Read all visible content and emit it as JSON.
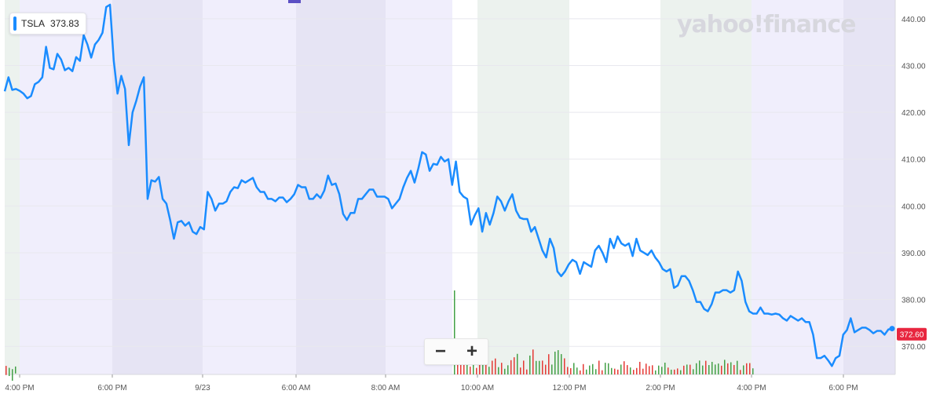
{
  "ticker": {
    "symbol": "TSLA",
    "price": "373.83"
  },
  "watermark": "yahoo!finance",
  "zoom": {
    "minus": "−",
    "plus": "+"
  },
  "colors": {
    "line": "#1a8cff",
    "current_price_bg": "#e8263f",
    "session_afterhours": "#f0eefc",
    "session_overnight": "#e6e4f4",
    "session_premarket": "#ecf2ee",
    "vol_up": "#43a047",
    "vol_down": "#e53935"
  },
  "chart_data": {
    "type": "line",
    "title": "",
    "xlabel": "",
    "ylabel": "",
    "ylim": [
      364,
      443
    ],
    "x_tick_labels": [
      "4:00 PM",
      "6:00 PM",
      "9/23",
      "6:00 AM",
      "8:00 AM",
      "10:00 AM",
      "12:00 PM",
      "2:00 PM",
      "4:00 PM",
      "6:00 PM"
    ],
    "y_tick_labels": [
      "440.00",
      "430.00",
      "420.00",
      "410.00",
      "400.00",
      "390.00",
      "380.00",
      "370.00"
    ],
    "current_price_label": "372.60",
    "current_price": 372.6,
    "series": [
      {
        "values": [
          424.5,
          427.5,
          424.8,
          425,
          424.6,
          424,
          423,
          423.5,
          426,
          426.5,
          427.5,
          434,
          429.5,
          429.2,
          432.5,
          431.3,
          429,
          429.5,
          428.8,
          431.8,
          431,
          436.5,
          434.5,
          431.7,
          434.5,
          435.5,
          437,
          442.5,
          443,
          431,
          424,
          427.8,
          425,
          413,
          420,
          422.5,
          425.5,
          427.5,
          401.5,
          405.5,
          405.2,
          406.2,
          401.5,
          400.5,
          397,
          393,
          396.5,
          396.8,
          395.8,
          396.5,
          394.5,
          394,
          395.5,
          395,
          403,
          401.5,
          399,
          400.5,
          400.5,
          401,
          403,
          404,
          403.8,
          405.5,
          405,
          405.5,
          406,
          404,
          403,
          403,
          401.5,
          401.5,
          401,
          401.8,
          401.8,
          400.8,
          401.5,
          402.5,
          404.5,
          404,
          404,
          401.5,
          401.5,
          402.5,
          401.7,
          403.3,
          406.5,
          404.5,
          404.8,
          402.5,
          398.3,
          397,
          398.5,
          398.5,
          401.5,
          401.5,
          402.5,
          403.5,
          403.5,
          402,
          402,
          402,
          401.5,
          399.5,
          400.5,
          401.5,
          404,
          406,
          407.5,
          405,
          408,
          411.5,
          411,
          407.5,
          409,
          408.8,
          410.5,
          409.5,
          410,
          404.5,
          409.5,
          403,
          402,
          401.5,
          396,
          398,
          399.5,
          394.5,
          398.5,
          396,
          398.5,
          402,
          401,
          399,
          401,
          402.5,
          399,
          397.5,
          397.2,
          397.2,
          394.5,
          395.5,
          393,
          390.5,
          389,
          393,
          391,
          386,
          385,
          386,
          387.5,
          388.5,
          388,
          385.5,
          388,
          387.5,
          387,
          390.5,
          391.5,
          390,
          388,
          393,
          391,
          393.5,
          392,
          391.5,
          392,
          389.3,
          393,
          390.5,
          390,
          389.5,
          390.5,
          389,
          388,
          386.5,
          386,
          386.5,
          382.5,
          383,
          385,
          385,
          384,
          382,
          379.5,
          379.5,
          378,
          377.5,
          379,
          381.5,
          381.5,
          382,
          382,
          381.5,
          382,
          386,
          384,
          379.5,
          377.5,
          377,
          377,
          378.3,
          377,
          377,
          376.8,
          377,
          376.8,
          376,
          375.5,
          376.5,
          376,
          375.5,
          376,
          375.2,
          375.2,
          372.5,
          367.5,
          367.5,
          368,
          367,
          365.8,
          367.5,
          368,
          372.5,
          373.5,
          376,
          373,
          373.5,
          374,
          374,
          373.5,
          372.8,
          373.3,
          373.3,
          372.5,
          373.6,
          373.8
        ]
      }
    ]
  }
}
